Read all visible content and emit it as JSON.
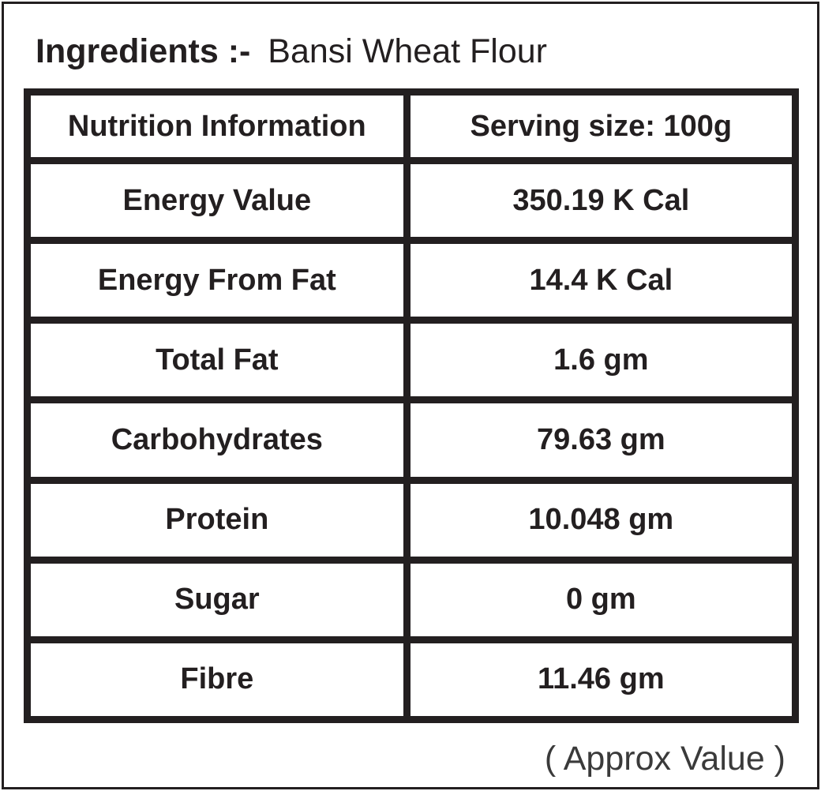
{
  "header": {
    "label": "Ingredients :-",
    "value": "Bansi Wheat Flour"
  },
  "table": {
    "columns": [
      "Nutrition Information",
      "Serving size: 100g"
    ],
    "rows": [
      {
        "label": "Energy Value",
        "value": "350.19 K Cal"
      },
      {
        "label": "Energy From Fat",
        "value": "14.4 K Cal"
      },
      {
        "label": "Total Fat",
        "value": "1.6 gm"
      },
      {
        "label": "Carbohydrates",
        "value": "79.63 gm"
      },
      {
        "label": "Protein",
        "value": "10.048 gm"
      },
      {
        "label": "Sugar",
        "value": "0 gm"
      },
      {
        "label": "Fibre",
        "value": "11.46 gm"
      }
    ]
  },
  "footer": {
    "note": "( Approx Value )"
  },
  "colors": {
    "text": "#231f20",
    "border": "#231f20",
    "background": "#ffffff",
    "footer_text": "#3a3a3a"
  }
}
